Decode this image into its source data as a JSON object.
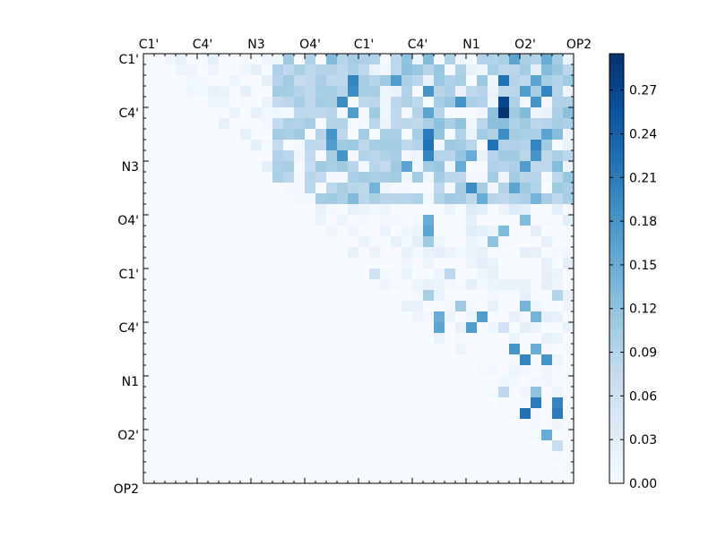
{
  "chart_data": {
    "type": "heatmap",
    "title": "",
    "xlabel": "",
    "ylabel": "",
    "n": 40,
    "x_tick_labels": [
      "C1'",
      "C4'",
      "N3",
      "O4'",
      "C1'",
      "C4'",
      "N1",
      "O2'",
      "OP2"
    ],
    "y_tick_labels": [
      "C1'",
      "C4'",
      "N3",
      "O4'",
      "C1'",
      "C4'",
      "N1",
      "O2'",
      "OP2"
    ],
    "colorbar": {
      "colormap": "Blues",
      "vmin": 0.0,
      "vmax": 0.295,
      "ticks": [
        0.0,
        0.03,
        0.06,
        0.09,
        0.12,
        0.15,
        0.18,
        0.21,
        0.24,
        0.27
      ],
      "tick_labels": [
        "0.00",
        "0.03",
        "0.06",
        "0.09",
        "0.12",
        "0.15",
        "0.18",
        "0.21",
        "0.24",
        "0.27"
      ]
    },
    "strong_cells": [
      [
        0,
        17,
        0.13
      ],
      [
        0,
        26,
        0.13
      ],
      [
        0,
        34,
        0.16
      ],
      [
        0,
        37,
        0.15
      ],
      [
        2,
        19,
        0.2
      ],
      [
        2,
        23,
        0.17
      ],
      [
        2,
        33,
        0.22
      ],
      [
        2,
        36,
        0.16
      ],
      [
        3,
        19,
        0.19
      ],
      [
        3,
        26,
        0.18
      ],
      [
        3,
        35,
        0.17
      ],
      [
        3,
        37,
        0.2
      ],
      [
        4,
        18,
        0.19
      ],
      [
        4,
        29,
        0.18
      ],
      [
        4,
        33,
        0.27
      ],
      [
        4,
        36,
        0.18
      ],
      [
        5,
        19,
        0.17
      ],
      [
        5,
        26,
        0.16
      ],
      [
        5,
        33,
        0.29
      ],
      [
        5,
        35,
        0.13
      ],
      [
        7,
        17,
        0.18
      ],
      [
        7,
        26,
        0.21
      ],
      [
        7,
        33,
        0.19
      ],
      [
        7,
        37,
        0.16
      ],
      [
        8,
        17,
        0.17
      ],
      [
        8,
        26,
        0.22
      ],
      [
        8,
        32,
        0.22
      ],
      [
        8,
        36,
        0.2
      ],
      [
        9,
        18,
        0.18
      ],
      [
        9,
        26,
        0.2
      ],
      [
        9,
        30,
        0.15
      ],
      [
        9,
        36,
        0.18
      ],
      [
        10,
        24,
        0.16
      ],
      [
        10,
        29,
        0.15
      ],
      [
        10,
        35,
        0.17
      ],
      [
        12,
        21,
        0.14
      ],
      [
        12,
        30,
        0.19
      ],
      [
        12,
        34,
        0.16
      ],
      [
        13,
        19,
        0.13
      ],
      [
        13,
        31,
        0.15
      ],
      [
        13,
        36,
        0.14
      ],
      [
        15,
        26,
        0.15
      ],
      [
        15,
        35,
        0.13
      ],
      [
        16,
        26,
        0.16
      ],
      [
        16,
        33,
        0.13
      ],
      [
        17,
        26,
        0.11
      ],
      [
        17,
        32,
        0.12
      ],
      [
        20,
        21,
        0.06
      ],
      [
        20,
        28,
        0.08
      ],
      [
        22,
        26,
        0.1
      ],
      [
        22,
        38,
        0.09
      ],
      [
        23,
        29,
        0.11
      ],
      [
        23,
        35,
        0.14
      ],
      [
        24,
        27,
        0.15
      ],
      [
        24,
        31,
        0.17
      ],
      [
        24,
        36,
        0.14
      ],
      [
        25,
        27,
        0.16
      ],
      [
        25,
        30,
        0.17
      ],
      [
        25,
        33,
        0.06
      ],
      [
        27,
        34,
        0.18
      ],
      [
        27,
        36,
        0.15
      ],
      [
        28,
        35,
        0.2
      ],
      [
        28,
        37,
        0.18
      ],
      [
        31,
        33,
        0.08
      ],
      [
        31,
        36,
        0.12
      ],
      [
        32,
        36,
        0.21
      ],
      [
        32,
        38,
        0.2
      ],
      [
        33,
        35,
        0.22
      ],
      [
        33,
        38,
        0.21
      ],
      [
        35,
        37,
        0.15
      ],
      [
        36,
        38,
        0.07
      ]
    ]
  }
}
